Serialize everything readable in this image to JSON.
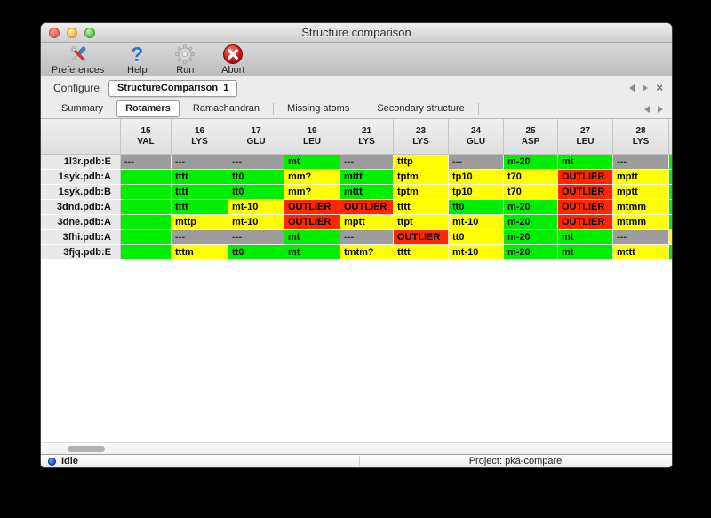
{
  "window": {
    "title": "Structure comparison"
  },
  "toolbar": {
    "items": [
      {
        "label": "Preferences",
        "icon": "tools-icon"
      },
      {
        "label": "Help",
        "icon": "help-icon"
      },
      {
        "label": "Run",
        "icon": "gear-icon"
      },
      {
        "label": "Abort",
        "icon": "abort-icon"
      }
    ]
  },
  "configure": {
    "label": "Configure",
    "value": "StructureComparison_1"
  },
  "tabs": {
    "items": [
      "Summary",
      "Rotamers",
      "Ramachandran",
      "Missing atoms",
      "Secondary structure"
    ],
    "active": "Rotamers"
  },
  "colors": {
    "green": "#00ef00",
    "yellow": "#ffff00",
    "red": "#ff2600",
    "gray": "#9c9c9c"
  },
  "table": {
    "columns": [
      {
        "num": "15",
        "res": "VAL"
      },
      {
        "num": "16",
        "res": "LYS"
      },
      {
        "num": "17",
        "res": "GLU"
      },
      {
        "num": "19",
        "res": "LEU"
      },
      {
        "num": "21",
        "res": "LYS"
      },
      {
        "num": "23",
        "res": "LYS"
      },
      {
        "num": "24",
        "res": "GLU"
      },
      {
        "num": "25",
        "res": "ASP"
      },
      {
        "num": "27",
        "res": "LEU"
      },
      {
        "num": "28",
        "res": "LYS"
      }
    ],
    "rows": [
      {
        "label": "1l3r.pdb:E",
        "cells": [
          {
            "text": "---",
            "status": "gray"
          },
          {
            "text": "---",
            "status": "gray"
          },
          {
            "text": "---",
            "status": "gray"
          },
          {
            "text": "mt",
            "status": "green"
          },
          {
            "text": "---",
            "status": "gray"
          },
          {
            "text": "tttp",
            "status": "yellow"
          },
          {
            "text": "---",
            "status": "gray"
          },
          {
            "text": "m-20",
            "status": "green"
          },
          {
            "text": "mt",
            "status": "green"
          },
          {
            "text": "---",
            "status": "gray"
          }
        ],
        "overflow": "green"
      },
      {
        "label": "1syk.pdb:A",
        "cells": [
          {
            "text": "",
            "status": "green"
          },
          {
            "text": "tttt",
            "status": "green"
          },
          {
            "text": "tt0",
            "status": "green"
          },
          {
            "text": "mm?",
            "status": "yellow"
          },
          {
            "text": "mttt",
            "status": "green"
          },
          {
            "text": "tptm",
            "status": "yellow"
          },
          {
            "text": "tp10",
            "status": "yellow"
          },
          {
            "text": "t70",
            "status": "yellow"
          },
          {
            "text": "OUTLIER",
            "status": "red"
          },
          {
            "text": "mptt",
            "status": "yellow"
          }
        ],
        "overflow": "green"
      },
      {
        "label": "1syk.pdb:B",
        "cells": [
          {
            "text": "",
            "status": "green"
          },
          {
            "text": "tttt",
            "status": "green"
          },
          {
            "text": "tt0",
            "status": "green"
          },
          {
            "text": "mm?",
            "status": "yellow"
          },
          {
            "text": "mttt",
            "status": "green"
          },
          {
            "text": "tptm",
            "status": "yellow"
          },
          {
            "text": "tp10",
            "status": "yellow"
          },
          {
            "text": "t70",
            "status": "yellow"
          },
          {
            "text": "OUTLIER",
            "status": "red"
          },
          {
            "text": "mptt",
            "status": "yellow"
          }
        ],
        "overflow": "green"
      },
      {
        "label": "3dnd.pdb:A",
        "cells": [
          {
            "text": "",
            "status": "green"
          },
          {
            "text": "tttt",
            "status": "green"
          },
          {
            "text": "mt-10",
            "status": "yellow"
          },
          {
            "text": "OUTLIER",
            "status": "red"
          },
          {
            "text": "OUTLIER",
            "status": "red"
          },
          {
            "text": "tttt",
            "status": "yellow"
          },
          {
            "text": "tt0",
            "status": "green"
          },
          {
            "text": "m-20",
            "status": "green"
          },
          {
            "text": "OUTLIER",
            "status": "red"
          },
          {
            "text": "mtmm",
            "status": "yellow"
          }
        ],
        "overflow": "green"
      },
      {
        "label": "3dne.pdb:A",
        "cells": [
          {
            "text": "",
            "status": "green"
          },
          {
            "text": "mttp",
            "status": "yellow"
          },
          {
            "text": "mt-10",
            "status": "yellow"
          },
          {
            "text": "OUTLIER",
            "status": "red"
          },
          {
            "text": "mptt",
            "status": "yellow"
          },
          {
            "text": "ttpt",
            "status": "yellow"
          },
          {
            "text": "mt-10",
            "status": "yellow"
          },
          {
            "text": "m-20",
            "status": "green"
          },
          {
            "text": "OUTLIER",
            "status": "red"
          },
          {
            "text": "mtmm",
            "status": "yellow"
          }
        ],
        "overflow": "green"
      },
      {
        "label": "3fhi.pdb:A",
        "cells": [
          {
            "text": "",
            "status": "green"
          },
          {
            "text": "---",
            "status": "gray"
          },
          {
            "text": "---",
            "status": "gray"
          },
          {
            "text": "mt",
            "status": "green"
          },
          {
            "text": "---",
            "status": "gray"
          },
          {
            "text": "OUTLIER",
            "status": "red"
          },
          {
            "text": "tt0",
            "status": "yellow"
          },
          {
            "text": "m-20",
            "status": "green"
          },
          {
            "text": "mt",
            "status": "green"
          },
          {
            "text": "---",
            "status": "gray"
          }
        ],
        "overflow": "yellow"
      },
      {
        "label": "3fjq.pdb:E",
        "cells": [
          {
            "text": "",
            "status": "green"
          },
          {
            "text": "tttm",
            "status": "yellow"
          },
          {
            "text": "tt0",
            "status": "green"
          },
          {
            "text": "mt",
            "status": "green"
          },
          {
            "text": "tmtm?",
            "status": "yellow"
          },
          {
            "text": "tttt",
            "status": "yellow"
          },
          {
            "text": "mt-10",
            "status": "yellow"
          },
          {
            "text": "m-20",
            "status": "green"
          },
          {
            "text": "mt",
            "status": "green"
          },
          {
            "text": "mttt",
            "status": "yellow"
          }
        ],
        "overflow": "green"
      }
    ]
  },
  "statusbar": {
    "status": "Idle",
    "project": "Project: pka-compare"
  }
}
